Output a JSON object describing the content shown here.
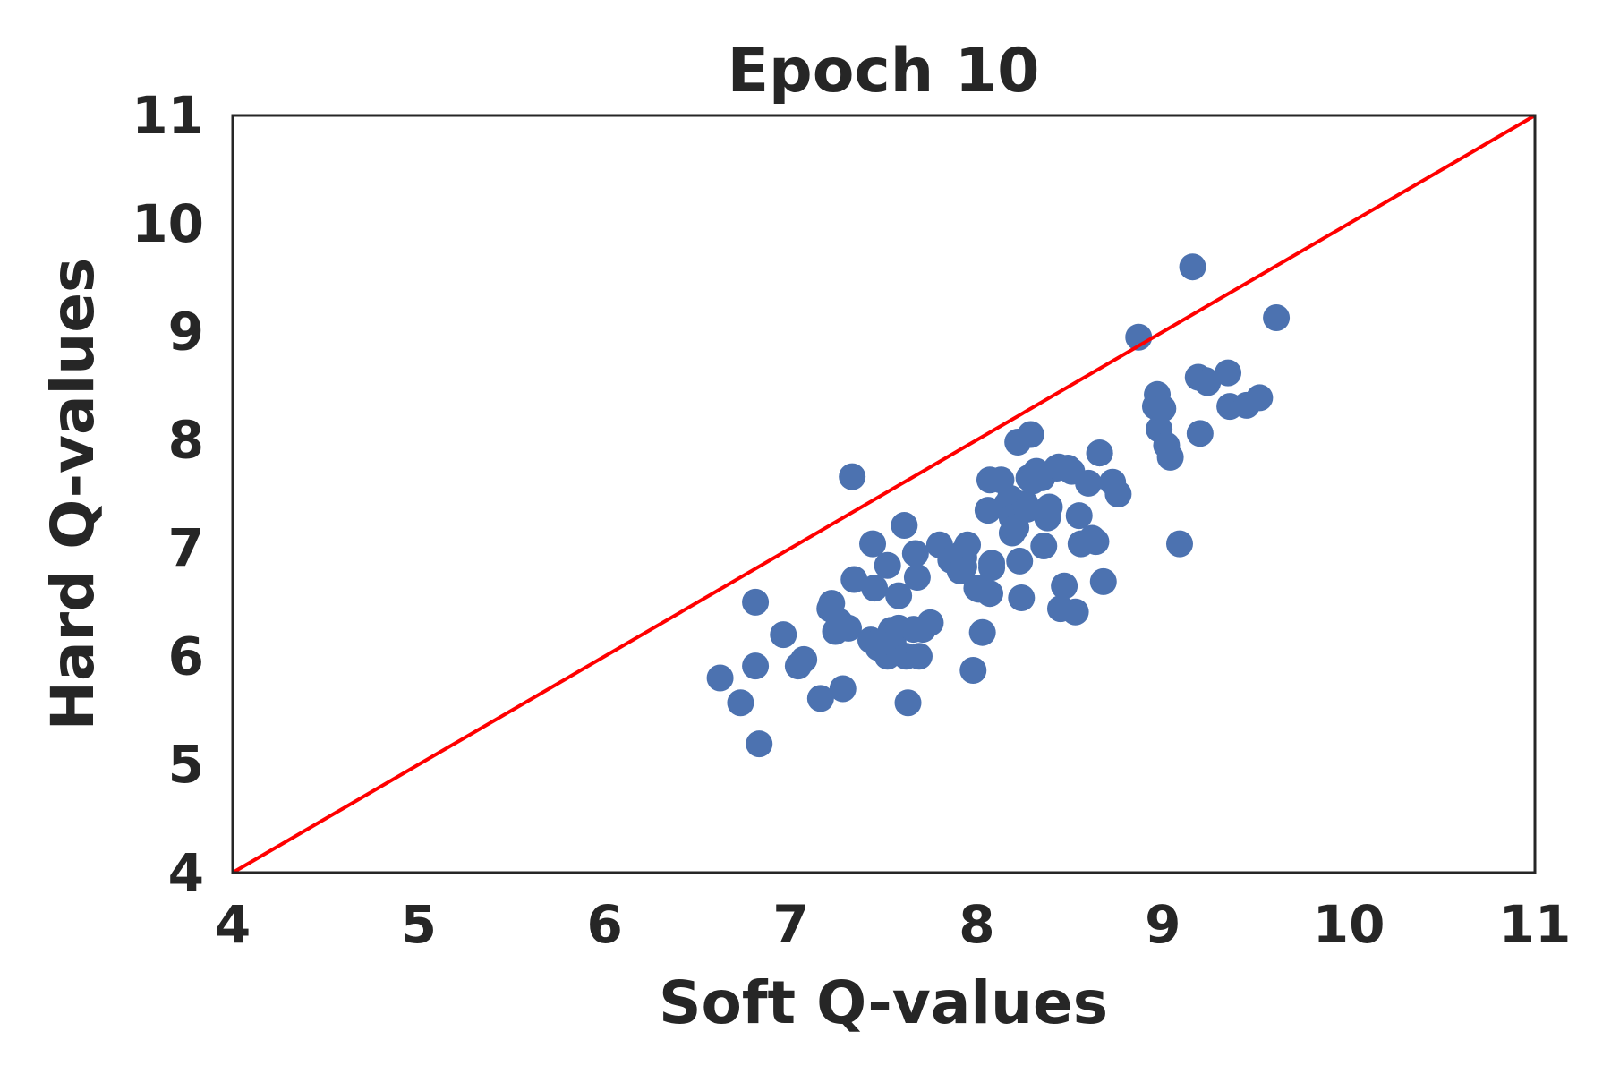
{
  "chart_data": {
    "type": "scatter",
    "title": "Epoch 10",
    "xlabel": "Soft Q-values",
    "ylabel": "Hard Q-values",
    "xlim": [
      4,
      11
    ],
    "ylim": [
      4,
      11
    ],
    "x_ticks": [
      "4",
      "5",
      "6",
      "7",
      "8",
      "9",
      "10",
      "11"
    ],
    "y_ticks": [
      "4",
      "5",
      "6",
      "7",
      "8",
      "9",
      "10",
      "11"
    ],
    "grid": false,
    "colors": {
      "points": "#4c72b0",
      "reference_line": "#ff0000",
      "frame": "#262626"
    },
    "reference_line": {
      "x": [
        4,
        11
      ],
      "y": [
        4,
        11
      ]
    },
    "series": [
      {
        "x": [
          6.62,
          6.73,
          6.83,
          6.81,
          6.81,
          6.96,
          7.04,
          7.07,
          7.16,
          7.28,
          7.21,
          7.22,
          7.24,
          7.26,
          7.31,
          7.34,
          7.33,
          7.43,
          7.44,
          7.45,
          7.46,
          7.47,
          7.52,
          7.52,
          7.54,
          7.55,
          7.58,
          7.58,
          7.61,
          7.62,
          7.63,
          7.66,
          7.67,
          7.68,
          7.69,
          7.71,
          7.75,
          7.8,
          7.86,
          7.91,
          7.92,
          7.93,
          7.93,
          7.95,
          7.98,
          8.0,
          8.01,
          8.03,
          8.06,
          8.07,
          8.07,
          8.08,
          8.08,
          8.13,
          8.16,
          8.18,
          8.19,
          8.19,
          8.21,
          8.22,
          8.23,
          8.24,
          8.26,
          8.27,
          8.28,
          8.29,
          8.3,
          8.32,
          8.35,
          8.36,
          8.38,
          8.39,
          8.43,
          8.44,
          8.45,
          8.47,
          8.49,
          8.51,
          8.53,
          8.55,
          8.56,
          8.6,
          8.62,
          8.64,
          8.66,
          8.66,
          8.68,
          8.73,
          8.76,
          8.87,
          8.96,
          8.97,
          8.98,
          9.0,
          9.02,
          9.04,
          9.09,
          9.16,
          9.19,
          9.2,
          9.23,
          9.24,
          9.35,
          9.36,
          9.45,
          9.52,
          9.61
        ],
        "y": [
          5.8,
          5.57,
          5.19,
          5.91,
          6.5,
          6.2,
          5.91,
          5.97,
          5.61,
          5.7,
          6.44,
          6.49,
          6.23,
          6.32,
          6.26,
          6.71,
          7.66,
          6.15,
          7.04,
          6.63,
          6.12,
          6.08,
          6.84,
          6.0,
          6.24,
          6.12,
          6.56,
          6.26,
          7.21,
          6.0,
          5.57,
          6.25,
          6.95,
          6.73,
          6.0,
          6.25,
          6.31,
          7.03,
          6.89,
          6.79,
          6.95,
          6.83,
          6.91,
          7.03,
          5.87,
          6.63,
          6.62,
          6.22,
          7.35,
          7.63,
          6.58,
          6.86,
          6.82,
          7.63,
          7.4,
          7.46,
          7.14,
          7.28,
          7.19,
          7.98,
          6.88,
          6.54,
          7.41,
          7.36,
          7.65,
          8.05,
          7.62,
          7.71,
          7.65,
          7.02,
          7.28,
          7.38,
          7.74,
          7.75,
          6.44,
          6.65,
          7.74,
          7.71,
          6.41,
          7.3,
          7.04,
          7.6,
          7.09,
          7.06,
          7.88,
          7.88,
          6.69,
          7.61,
          7.5,
          8.95,
          8.31,
          8.42,
          8.1,
          8.29,
          7.95,
          7.84,
          7.04,
          9.6,
          8.58,
          8.06,
          8.55,
          8.53,
          8.62,
          8.31,
          8.32,
          8.39,
          9.13
        ]
      }
    ]
  }
}
